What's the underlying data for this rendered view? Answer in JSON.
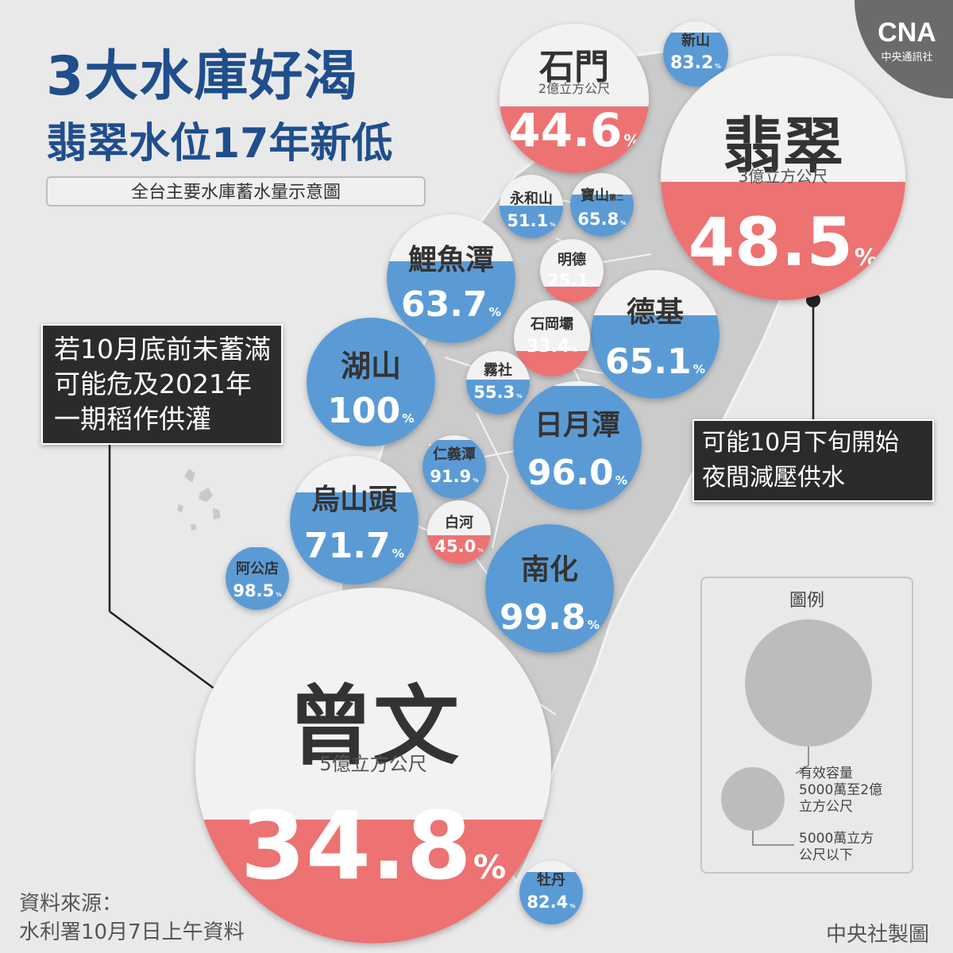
{
  "title": {
    "line1": "3大水庫好渴",
    "line2": "翡翠水位17年新低"
  },
  "subtitle": "全台主要水庫蓄水量示意圖",
  "colors": {
    "title": "#1f4e8c",
    "low": "#ed7272",
    "normal": "#5b9bd5",
    "circle_bg": "#f2f2f2",
    "land": "#cbcbcb",
    "callout_bg": "#2b2b2b"
  },
  "reservoirs": [
    {
      "id": "shimen",
      "name": "石門",
      "capacity": "2億立方公尺",
      "value": "44.6",
      "unit": "%",
      "level": 0.446,
      "status": "low"
    },
    {
      "id": "hsinshan",
      "name": "新山",
      "capacity": "",
      "value": "83.2",
      "unit": "%",
      "level": 0.832,
      "status": "normal"
    },
    {
      "id": "feitsui",
      "name": "翡翠",
      "capacity": "3億立方公尺",
      "value": "48.5",
      "unit": "%",
      "level": 0.485,
      "status": "low"
    },
    {
      "id": "yonghe",
      "name": "永和山",
      "capacity": "",
      "value": "51.1",
      "unit": "%",
      "level": 0.511,
      "status": "normal"
    },
    {
      "id": "baoshan2",
      "name": "寶山",
      "name_suffix": "第二",
      "capacity": "",
      "value": "65.8",
      "unit": "%",
      "level": 0.658,
      "status": "normal"
    },
    {
      "id": "liyutan",
      "name": "鯉魚潭",
      "capacity": "",
      "value": "63.7",
      "unit": "%",
      "level": 0.637,
      "status": "normal"
    },
    {
      "id": "mingde",
      "name": "明德",
      "capacity": "",
      "value": "25.1",
      "unit": "%",
      "level": 0.251,
      "status": "low"
    },
    {
      "id": "deji",
      "name": "德基",
      "capacity": "",
      "value": "65.1",
      "unit": "%",
      "level": 0.651,
      "status": "normal"
    },
    {
      "id": "shigang",
      "name": "石岡壩",
      "capacity": "",
      "value": "33.4",
      "unit": "%",
      "level": 0.334,
      "status": "low"
    },
    {
      "id": "hushan",
      "name": "湖山",
      "capacity": "",
      "value": "100",
      "unit": "%",
      "level": 1.0,
      "status": "normal"
    },
    {
      "id": "wushe",
      "name": "霧社",
      "capacity": "",
      "value": "55.3",
      "unit": "%",
      "level": 0.553,
      "status": "normal"
    },
    {
      "id": "sunmoon",
      "name": "日月潭",
      "capacity": "",
      "value": "96.0",
      "unit": "%",
      "level": 0.96,
      "status": "normal"
    },
    {
      "id": "renyitan",
      "name": "仁義潭",
      "capacity": "",
      "value": "91.9",
      "unit": "%",
      "level": 0.919,
      "status": "normal"
    },
    {
      "id": "wushantou",
      "name": "烏山頭",
      "capacity": "",
      "value": "71.7",
      "unit": "%",
      "level": 0.717,
      "status": "normal"
    },
    {
      "id": "baihe",
      "name": "白河",
      "capacity": "",
      "value": "45.0",
      "unit": "%",
      "level": 0.45,
      "status": "low"
    },
    {
      "id": "nanhua",
      "name": "南化",
      "capacity": "",
      "value": "99.8",
      "unit": "%",
      "level": 0.998,
      "status": "normal"
    },
    {
      "id": "agongdian",
      "name": "阿公店",
      "capacity": "",
      "value": "98.5",
      "unit": "%",
      "level": 0.985,
      "status": "normal"
    },
    {
      "id": "zengwen",
      "name": "曾文",
      "capacity": "5億立方公尺",
      "value": "34.8",
      "unit": "%",
      "level": 0.348,
      "status": "low"
    },
    {
      "id": "mudan",
      "name": "牡丹",
      "capacity": "",
      "value": "82.4",
      "unit": "%",
      "level": 0.824,
      "status": "normal"
    }
  ],
  "callouts": {
    "left": {
      "lines": [
        "若10月底前未蓄滿",
        "可能危及2021年",
        "一期稻作供灌"
      ]
    },
    "right": {
      "lines": [
        "可能10月下旬開始",
        "夜間減壓供水"
      ]
    }
  },
  "legend": {
    "title": "圖例",
    "large_label": [
      "有效容量",
      "5000萬至2億",
      "立方公尺"
    ],
    "small_label": [
      "5000萬立方",
      "公尺以下"
    ]
  },
  "logo": {
    "text": "CNA",
    "subtext": "中央通訊社"
  },
  "source": {
    "line1": "資料來源：",
    "line2": "水利署10月7日上午資料"
  },
  "credit": "中央社製圖"
}
